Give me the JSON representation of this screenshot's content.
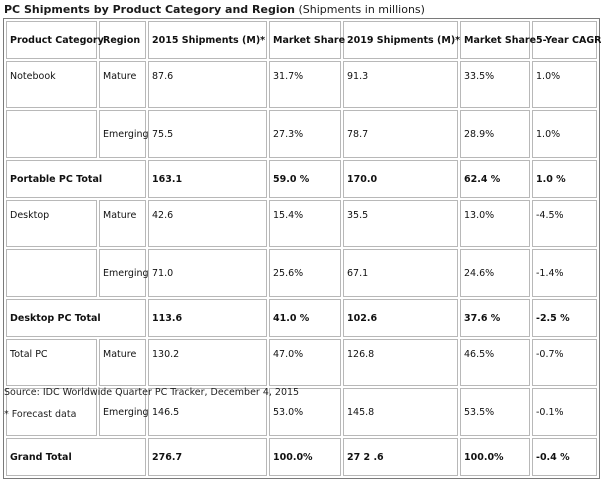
{
  "title": {
    "main": "PC Shipments by Product Category and Region",
    "sub": "(Shipments in millions)"
  },
  "headers": [
    "Product Category",
    "Region",
    "2015 Shipments (M)*",
    "Market Share",
    "2019 Shipments (M)*",
    "Market Share",
    "5-Year CAGR"
  ],
  "rows": {
    "notebook_mature": [
      "Notebook",
      "Mature",
      "87.6",
      "31.7%",
      "91.3",
      "33.5%",
      "1.0%"
    ],
    "notebook_emerging": [
      "Emerging",
      "75.5",
      "27.3%",
      "78.7",
      "28.9%",
      "1.0%"
    ],
    "portable_total": [
      "Portable PC Total",
      "163.1",
      "59.0 %",
      "170.0",
      "62.4 %",
      "1.0 %"
    ],
    "desktop_mature": [
      "Desktop",
      "Mature",
      "42.6",
      "15.4%",
      "35.5",
      "13.0%",
      "-4.5%"
    ],
    "desktop_emerging": [
      "Emerging",
      "71.0",
      "25.6%",
      "67.1",
      "24.6%",
      "-1.4%"
    ],
    "desktop_total": [
      "Desktop PC Total",
      "113.6",
      "41.0 %",
      "102.6",
      "37.6 %",
      "-2.5 %"
    ],
    "totalpc_mature": [
      "Total PC",
      "Mature",
      "130.2",
      "47.0%",
      "126.8",
      "46.5%",
      "-0.7%"
    ],
    "totalpc_emerging": [
      "Emerging",
      "146.5",
      "53.0%",
      "145.8",
      "53.5%",
      "-0.1%"
    ],
    "grand_total": [
      "Grand Total",
      "276.7",
      "100.0%",
      "27 2 .6",
      "100.0%",
      "-0.4 %"
    ]
  },
  "footer": {
    "source": "Source: IDC Worldwide Quarter PC Tracker, December 4, 2015",
    "note": "* Forecast data"
  }
}
